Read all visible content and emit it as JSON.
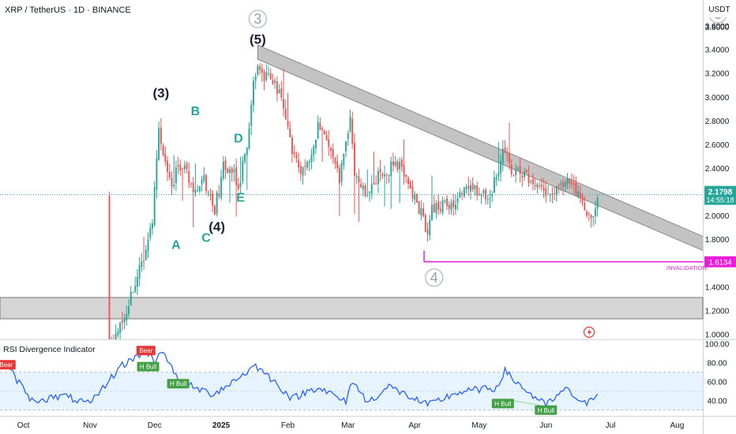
{
  "title": "XRP / TetherUS · 1D · BINANCE",
  "currency": "USDT",
  "timer": "14:55:18",
  "colors": {
    "up": "#26a69a",
    "down": "#ef5350",
    "rsi": "#2962ff",
    "invalidation": "#e91edb",
    "band": "#bdbdbd"
  },
  "price_axis": {
    "labels": [
      "3.6000",
      "3.4000",
      "3.2000",
      "3.0000",
      "2.8000",
      "2.6000",
      "2.4000",
      "2.2000",
      "2.0000",
      "1.8000",
      "1.6000",
      "1.4000",
      "1.2000",
      "1.0000"
    ],
    "values": [
      3.6,
      3.4,
      3.2,
      3.0,
      2.8,
      2.6,
      2.4,
      2.2,
      2.0,
      1.8,
      1.6,
      1.4,
      1.2,
      1.0
    ],
    "top_label": "3.8000"
  },
  "current_price": {
    "value": 2.1798,
    "label": "2.1798"
  },
  "invalidation": {
    "value": 1.6134,
    "label": "1.6134",
    "text": "INVALIDATION"
  },
  "time_axis": {
    "labels": [
      "Oct",
      "Nov",
      "Dec",
      "2025",
      "Feb",
      "Mar",
      "Apr",
      "May",
      "Jun",
      "Jul",
      "Aug"
    ]
  },
  "chart_data": [
    {
      "type": "candlestick",
      "title": "XRP / TetherUS · 1D · BINANCE",
      "y_unit": "USDT",
      "ylim": [
        0.96,
        3.82
      ],
      "x_start": "2024-11-10",
      "x_end": "2025-06-25",
      "close_path": [
        [
          "2024-11-10",
          0.85
        ],
        [
          "2024-11-14",
          1.05
        ],
        [
          "2024-11-18",
          1.15
        ],
        [
          "2024-11-22",
          1.45
        ],
        [
          "2024-11-26",
          1.6
        ],
        [
          "2024-11-30",
          1.95
        ],
        [
          "2024-12-02",
          2.45
        ],
        [
          "2024-12-03",
          2.72
        ],
        [
          "2024-12-06",
          2.45
        ],
        [
          "2024-12-09",
          2.25
        ],
        [
          "2024-12-12",
          2.4
        ],
        [
          "2024-12-16",
          2.45
        ],
        [
          "2024-12-18",
          2.2
        ],
        [
          "2024-12-20",
          2.2
        ],
        [
          "2024-12-24",
          2.3
        ],
        [
          "2024-12-29",
          2.05
        ],
        [
          "2025-01-02",
          2.4
        ],
        [
          "2025-01-06",
          2.4
        ],
        [
          "2025-01-09",
          2.25
        ],
        [
          "2025-01-13",
          2.6
        ],
        [
          "2025-01-16",
          3.15
        ],
        [
          "2025-01-18",
          3.3
        ],
        [
          "2025-01-21",
          3.2
        ],
        [
          "2025-01-25",
          3.1
        ],
        [
          "2025-01-28",
          3.05
        ],
        [
          "2025-02-03",
          2.55
        ],
        [
          "2025-02-07",
          2.4
        ],
        [
          "2025-02-12",
          2.5
        ],
        [
          "2025-02-15",
          2.75
        ],
        [
          "2025-02-20",
          2.65
        ],
        [
          "2025-02-25",
          2.3
        ],
        [
          "2025-03-02",
          2.85
        ],
        [
          "2025-03-04",
          2.35
        ],
        [
          "2025-03-10",
          2.15
        ],
        [
          "2025-03-15",
          2.35
        ],
        [
          "2025-03-20",
          2.4
        ],
        [
          "2025-03-25",
          2.45
        ],
        [
          "2025-03-30",
          2.2
        ],
        [
          "2025-04-04",
          2.05
        ],
        [
          "2025-04-07",
          1.8
        ],
        [
          "2025-04-09",
          2.05
        ],
        [
          "2025-04-14",
          2.1
        ],
        [
          "2025-04-20",
          2.1
        ],
        [
          "2025-04-25",
          2.25
        ],
        [
          "2025-05-01",
          2.22
        ],
        [
          "2025-05-06",
          2.15
        ],
        [
          "2025-05-10",
          2.4
        ],
        [
          "2025-05-12",
          2.55
        ],
        [
          "2025-05-16",
          2.4
        ],
        [
          "2025-05-21",
          2.35
        ],
        [
          "2025-05-26",
          2.3
        ],
        [
          "2025-06-01",
          2.18
        ],
        [
          "2025-06-04",
          2.2
        ],
        [
          "2025-06-08",
          2.25
        ],
        [
          "2025-06-12",
          2.3
        ],
        [
          "2025-06-15",
          2.2
        ],
        [
          "2025-06-19",
          2.1
        ],
        [
          "2025-06-22",
          1.95
        ],
        [
          "2025-06-25",
          2.18
        ]
      ],
      "annotations": {
        "waves_dark": [
          {
            "label": "(5)",
            "date": "2025-01-18",
            "price": 3.45
          },
          {
            "label": "(3)",
            "date": "2024-12-04",
            "price": 3.0
          },
          {
            "label": "(4)",
            "date": "2024-12-30",
            "price": 1.87
          }
        ],
        "waves_teal": [
          {
            "label": "B",
            "date": "2024-12-20",
            "price": 2.85
          },
          {
            "label": "D",
            "date": "2025-01-09",
            "price": 2.62
          },
          {
            "label": "E",
            "date": "2025-01-10",
            "price": 2.12
          },
          {
            "label": "A",
            "date": "2024-12-11",
            "price": 1.72
          },
          {
            "label": "C",
            "date": "2024-12-25",
            "price": 1.78
          }
        ],
        "waves_circled": [
          {
            "label": "3",
            "date": "2025-01-18",
            "price": 3.66
          },
          {
            "label": "4",
            "date": "2025-04-10",
            "price": 1.48
          },
          {
            "label": "5",
            "date": "2025-08-20",
            "price": 3.7
          }
        ]
      },
      "trend_band": {
        "from": [
          "2025-01-18",
          3.38
        ],
        "to": [
          "2025-08-31",
          1.58
        ]
      }
    },
    {
      "type": "line",
      "title": "RSI Divergence Indicator",
      "ylim": [
        24,
        104
      ],
      "y_ticks": [
        "100.00",
        "80.00",
        "60.00",
        "40.00"
      ],
      "y_tick_values": [
        100,
        80,
        60,
        40
      ],
      "band": [
        30,
        70
      ],
      "midline": 50,
      "labels": [
        {
          "text": "Bear",
          "kind": "bear",
          "date": "2024-11-27",
          "value": 93
        },
        {
          "text": "Bear",
          "kind": "bear",
          "date": "2024-09-23",
          "value": 78
        },
        {
          "text": "H Bull",
          "kind": "bull",
          "date": "2024-11-28",
          "value": 76
        },
        {
          "text": "H Bull",
          "kind": "bull",
          "date": "2024-12-12",
          "value": 58
        },
        {
          "text": "H Bull",
          "kind": "bull",
          "date": "2025-05-12",
          "value": 37
        },
        {
          "text": "H Bull",
          "kind": "bull",
          "date": "2025-06-01",
          "value": 30
        }
      ]
    }
  ]
}
